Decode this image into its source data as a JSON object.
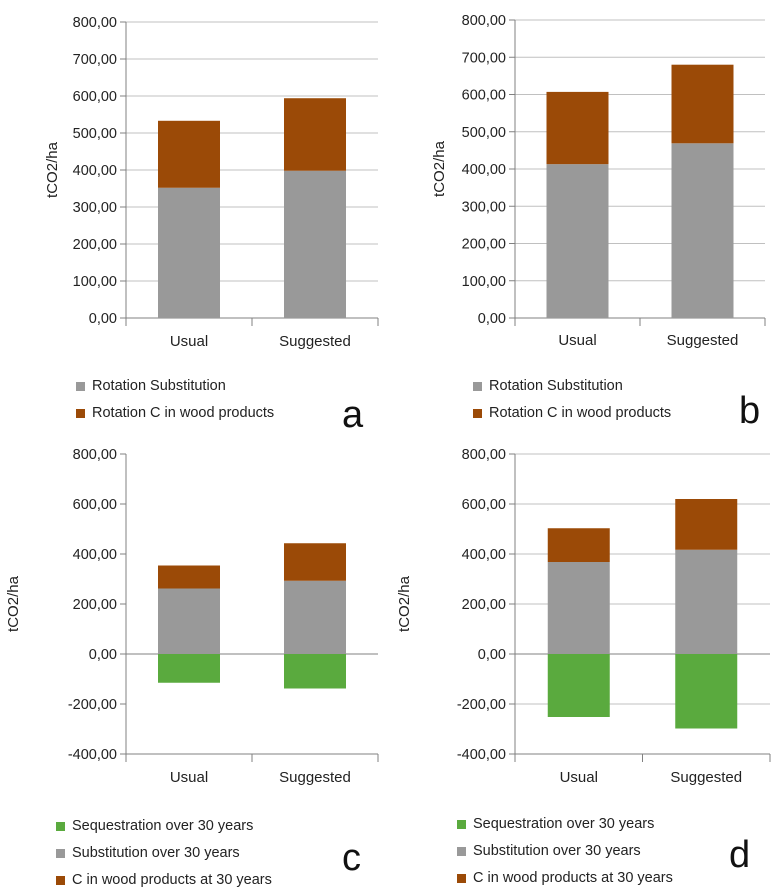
{
  "colors": {
    "sequestration": "#5aaa3e",
    "substitution": "#999999",
    "wood_products": "#9b4a07",
    "grid": "#c0c0c0",
    "axis": "#808080"
  },
  "chart_data": [
    {
      "panel_label": "a",
      "type": "bar",
      "stacked": true,
      "categories": [
        "Usual",
        "Suggested"
      ],
      "ylabel": "tCO2/ha",
      "ylim": [
        0,
        800
      ],
      "yticks": [
        "0,00",
        "100,00",
        "200,00",
        "300,00",
        "400,00",
        "500,00",
        "600,00",
        "700,00",
        "800,00"
      ],
      "grid": true,
      "legend_position": "bottom",
      "series": [
        {
          "name": "Rotation Substitution",
          "color_key": "substitution",
          "values": [
            352,
            398
          ]
        },
        {
          "name": "Rotation C in wood products",
          "color_key": "wood_products",
          "values": [
            181,
            196
          ]
        }
      ],
      "legend_order": [
        0,
        1
      ]
    },
    {
      "panel_label": "b",
      "type": "bar",
      "stacked": true,
      "categories": [
        "Usual",
        "Suggested"
      ],
      "ylabel": "tCO2/ha",
      "ylim": [
        0,
        800
      ],
      "yticks": [
        "0,00",
        "100,00",
        "200,00",
        "300,00",
        "400,00",
        "500,00",
        "600,00",
        "700,00",
        "800,00"
      ],
      "grid": true,
      "legend_position": "bottom",
      "series": [
        {
          "name": "Rotation Substitution",
          "color_key": "substitution",
          "values": [
            413,
            469
          ]
        },
        {
          "name": "Rotation C in wood products",
          "color_key": "wood_products",
          "values": [
            194,
            211
          ]
        }
      ],
      "legend_order": [
        0,
        1
      ]
    },
    {
      "panel_label": "c",
      "type": "bar",
      "stacked": true,
      "categories": [
        "Usual",
        "Suggested"
      ],
      "ylabel": "tCO2/ha",
      "ylim": [
        -400,
        800
      ],
      "yticks": [
        "-400,00",
        "-200,00",
        "0,00",
        "200,00",
        "400,00",
        "600,00",
        "800,00"
      ],
      "grid": false,
      "legend_position": "bottom",
      "series": [
        {
          "name": "Sequestration over 30 years",
          "color_key": "sequestration",
          "values": [
            -115,
            -138
          ]
        },
        {
          "name": "Substitution over 30 years",
          "color_key": "substitution",
          "values": [
            262,
            293
          ]
        },
        {
          "name": "C in wood products at 30 years",
          "color_key": "wood_products",
          "values": [
            92,
            150
          ]
        }
      ],
      "legend_order": [
        0,
        1,
        2
      ]
    },
    {
      "panel_label": "d",
      "type": "bar",
      "stacked": true,
      "categories": [
        "Usual",
        "Suggested"
      ],
      "ylabel": "tCO2/ha",
      "ylim": [
        -400,
        800
      ],
      "yticks": [
        "-400,00",
        "-200,00",
        "0,00",
        "200,00",
        "400,00",
        "600,00",
        "800,00"
      ],
      "grid": true,
      "legend_position": "bottom",
      "series": [
        {
          "name": "Sequestration over 30 years",
          "color_key": "sequestration",
          "values": [
            -252,
            -298
          ]
        },
        {
          "name": "Substitution over 30 years",
          "color_key": "substitution",
          "values": [
            368,
            417
          ]
        },
        {
          "name": "C in wood products at 30 years",
          "color_key": "wood_products",
          "values": [
            135,
            203
          ]
        }
      ],
      "legend_order": [
        0,
        1,
        2
      ]
    }
  ]
}
